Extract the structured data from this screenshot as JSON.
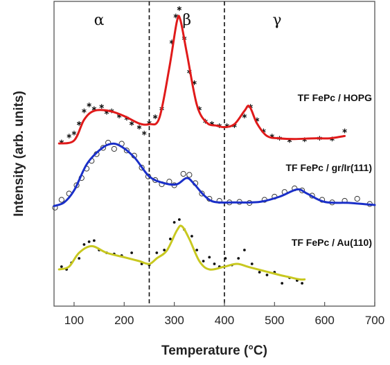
{
  "chart_data": {
    "type": "line",
    "xlabel": "Temperature (°C)",
    "ylabel": "Intensity (arb. units)",
    "xlim": [
      60,
      700
    ],
    "xticks": [
      100,
      200,
      300,
      400,
      500,
      600,
      700
    ],
    "yticks_shown": false,
    "dividers": [
      250,
      400
    ],
    "regions": [
      {
        "label": "α",
        "x": 150
      },
      {
        "label": "β",
        "x": 325
      },
      {
        "label": "γ",
        "x": 505
      }
    ],
    "series": [
      {
        "name": "TF FePc / HOPG",
        "color": "#e01a1a",
        "marker": "asterisk",
        "fit": [
          [
            70,
            -0.02
          ],
          [
            100,
            0.02
          ],
          [
            120,
            0.3
          ],
          [
            140,
            0.42
          ],
          [
            170,
            0.42
          ],
          [
            200,
            0.35
          ],
          [
            230,
            0.25
          ],
          [
            250,
            0.24
          ],
          [
            270,
            0.32
          ],
          [
            290,
            1.0
          ],
          [
            305,
            1.62
          ],
          [
            312,
            1.65
          ],
          [
            325,
            1.2
          ],
          [
            345,
            0.5
          ],
          [
            365,
            0.26
          ],
          [
            385,
            0.22
          ],
          [
            400,
            0.2
          ],
          [
            420,
            0.24
          ],
          [
            440,
            0.42
          ],
          [
            450,
            0.48
          ],
          [
            465,
            0.25
          ],
          [
            485,
            0.08
          ],
          [
            510,
            0.05
          ],
          [
            540,
            0.04
          ],
          [
            580,
            0.05
          ],
          [
            610,
            0.05
          ],
          [
            640,
            0.08
          ]
        ],
        "points": [
          [
            75,
            0.0
          ],
          [
            90,
            0.08
          ],
          [
            100,
            0.12
          ],
          [
            110,
            0.25
          ],
          [
            120,
            0.42
          ],
          [
            130,
            0.5
          ],
          [
            140,
            0.45
          ],
          [
            155,
            0.48
          ],
          [
            165,
            0.4
          ],
          [
            175,
            0.42
          ],
          [
            190,
            0.35
          ],
          [
            205,
            0.32
          ],
          [
            215,
            0.25
          ],
          [
            230,
            0.2
          ],
          [
            240,
            0.12
          ],
          [
            250,
            0.26
          ],
          [
            262,
            0.34
          ],
          [
            275,
            0.45
          ],
          [
            295,
            1.35
          ],
          [
            303,
            1.7
          ],
          [
            310,
            1.8
          ],
          [
            320,
            1.4
          ],
          [
            330,
            0.95
          ],
          [
            340,
            0.8
          ],
          [
            350,
            0.45
          ],
          [
            362,
            0.28
          ],
          [
            375,
            0.25
          ],
          [
            390,
            0.22
          ],
          [
            405,
            0.22
          ],
          [
            420,
            0.22
          ],
          [
            440,
            0.35
          ],
          [
            452,
            0.48
          ],
          [
            465,
            0.3
          ],
          [
            478,
            0.15
          ],
          [
            495,
            0.08
          ],
          [
            510,
            0.05
          ],
          [
            530,
            0.02
          ],
          [
            560,
            0.03
          ],
          [
            590,
            0.05
          ],
          [
            615,
            0.04
          ],
          [
            640,
            0.15
          ]
        ]
      },
      {
        "name": "TF FePc / gr/Ir(111)",
        "color": "#1a2fc8",
        "marker": "open-circle",
        "fit": [
          [
            60,
            -0.02
          ],
          [
            80,
            0.05
          ],
          [
            100,
            0.28
          ],
          [
            125,
            0.78
          ],
          [
            150,
            1.05
          ],
          [
            170,
            1.17
          ],
          [
            190,
            1.15
          ],
          [
            220,
            0.92
          ],
          [
            250,
            0.55
          ],
          [
            280,
            0.42
          ],
          [
            305,
            0.4
          ],
          [
            325,
            0.52
          ],
          [
            340,
            0.4
          ],
          [
            360,
            0.18
          ],
          [
            380,
            0.06
          ],
          [
            420,
            0.05
          ],
          [
            470,
            0.06
          ],
          [
            510,
            0.16
          ],
          [
            545,
            0.3
          ],
          [
            565,
            0.22
          ],
          [
            600,
            0.06
          ],
          [
            650,
            0.04
          ],
          [
            700,
            0.0
          ]
        ],
        "points": [
          [
            62,
            -0.05
          ],
          [
            75,
            0.1
          ],
          [
            90,
            0.22
          ],
          [
            105,
            0.38
          ],
          [
            115,
            0.52
          ],
          [
            125,
            0.7
          ],
          [
            135,
            0.85
          ],
          [
            145,
            0.98
          ],
          [
            158,
            1.1
          ],
          [
            168,
            1.2
          ],
          [
            180,
            1.08
          ],
          [
            195,
            1.18
          ],
          [
            205,
            1.05
          ],
          [
            220,
            0.95
          ],
          [
            235,
            0.72
          ],
          [
            248,
            0.55
          ],
          [
            262,
            0.48
          ],
          [
            275,
            0.4
          ],
          [
            290,
            0.45
          ],
          [
            300,
            0.38
          ],
          [
            318,
            0.6
          ],
          [
            330,
            0.58
          ],
          [
            342,
            0.42
          ],
          [
            355,
            0.22
          ],
          [
            370,
            0.12
          ],
          [
            390,
            0.08
          ],
          [
            410,
            0.05
          ],
          [
            430,
            0.06
          ],
          [
            450,
            0.04
          ],
          [
            480,
            0.1
          ],
          [
            500,
            0.16
          ],
          [
            520,
            0.25
          ],
          [
            540,
            0.32
          ],
          [
            555,
            0.28
          ],
          [
            575,
            0.18
          ],
          [
            595,
            0.1
          ],
          [
            615,
            0.05
          ],
          [
            640,
            0.08
          ],
          [
            665,
            0.12
          ],
          [
            690,
            0.02
          ]
        ]
      },
      {
        "name": "TF FePc / Au(110)",
        "color": "#c8c820",
        "marker": "dot",
        "fit": [
          [
            70,
            0.0
          ],
          [
            90,
            0.05
          ],
          [
            110,
            0.3
          ],
          [
            135,
            0.42
          ],
          [
            165,
            0.3
          ],
          [
            200,
            0.22
          ],
          [
            230,
            0.15
          ],
          [
            250,
            0.1
          ],
          [
            265,
            0.2
          ],
          [
            285,
            0.34
          ],
          [
            305,
            0.7
          ],
          [
            315,
            0.78
          ],
          [
            330,
            0.55
          ],
          [
            350,
            0.15
          ],
          [
            370,
            0.0
          ],
          [
            400,
            0.05
          ],
          [
            425,
            0.1
          ],
          [
            450,
            0.04
          ],
          [
            480,
            -0.03
          ],
          [
            510,
            -0.1
          ],
          [
            530,
            -0.14
          ],
          [
            550,
            -0.18
          ],
          [
            560,
            -0.18
          ]
        ],
        "points": [
          [
            75,
            0.05
          ],
          [
            85,
            0.0
          ],
          [
            95,
            0.12
          ],
          [
            110,
            0.2
          ],
          [
            120,
            0.45
          ],
          [
            130,
            0.5
          ],
          [
            140,
            0.52
          ],
          [
            150,
            0.35
          ],
          [
            165,
            0.3
          ],
          [
            180,
            0.28
          ],
          [
            195,
            0.25
          ],
          [
            215,
            0.3
          ],
          [
            235,
            0.1
          ],
          [
            250,
            0.08
          ],
          [
            265,
            0.3
          ],
          [
            280,
            0.35
          ],
          [
            292,
            0.55
          ],
          [
            300,
            0.85
          ],
          [
            310,
            0.9
          ],
          [
            320,
            0.72
          ],
          [
            335,
            0.6
          ],
          [
            345,
            0.35
          ],
          [
            358,
            0.15
          ],
          [
            370,
            0.22
          ],
          [
            380,
            0.1
          ],
          [
            390,
            0.05
          ],
          [
            402,
            0.2
          ],
          [
            415,
            0.08
          ],
          [
            428,
            0.2
          ],
          [
            440,
            0.35
          ],
          [
            455,
            0.1
          ],
          [
            470,
            -0.05
          ],
          [
            485,
            -0.1
          ],
          [
            500,
            -0.05
          ],
          [
            515,
            -0.25
          ],
          [
            530,
            -0.15
          ],
          [
            545,
            -0.2
          ],
          [
            555,
            -0.25
          ]
        ]
      }
    ]
  }
}
